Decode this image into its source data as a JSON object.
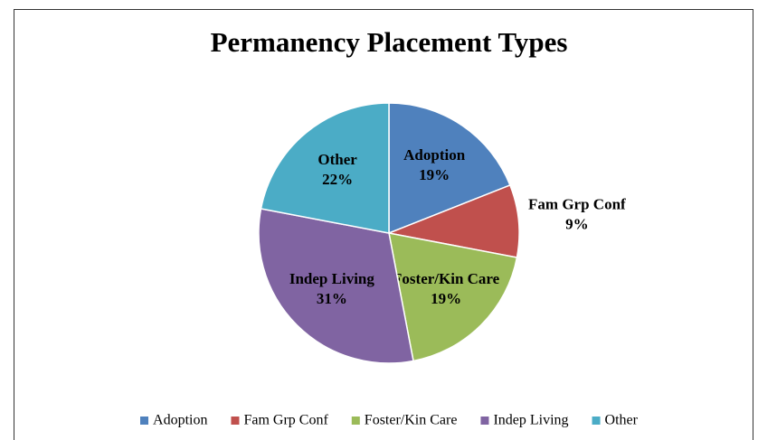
{
  "chart_data": {
    "type": "pie",
    "title": "Permanency Placement Types",
    "categories": [
      "Adoption",
      "Fam Grp Conf",
      "Foster/Kin Care",
      "Indep Living",
      "Other"
    ],
    "values": [
      19,
      9,
      19,
      31,
      22
    ],
    "value_labels": [
      "19%",
      "9%",
      "19%",
      "31%",
      "22%"
    ],
    "colors": [
      "#4f81bd",
      "#c0504d",
      "#9bbb59",
      "#8064a2",
      "#4bacc6"
    ],
    "legend": "bottom"
  }
}
